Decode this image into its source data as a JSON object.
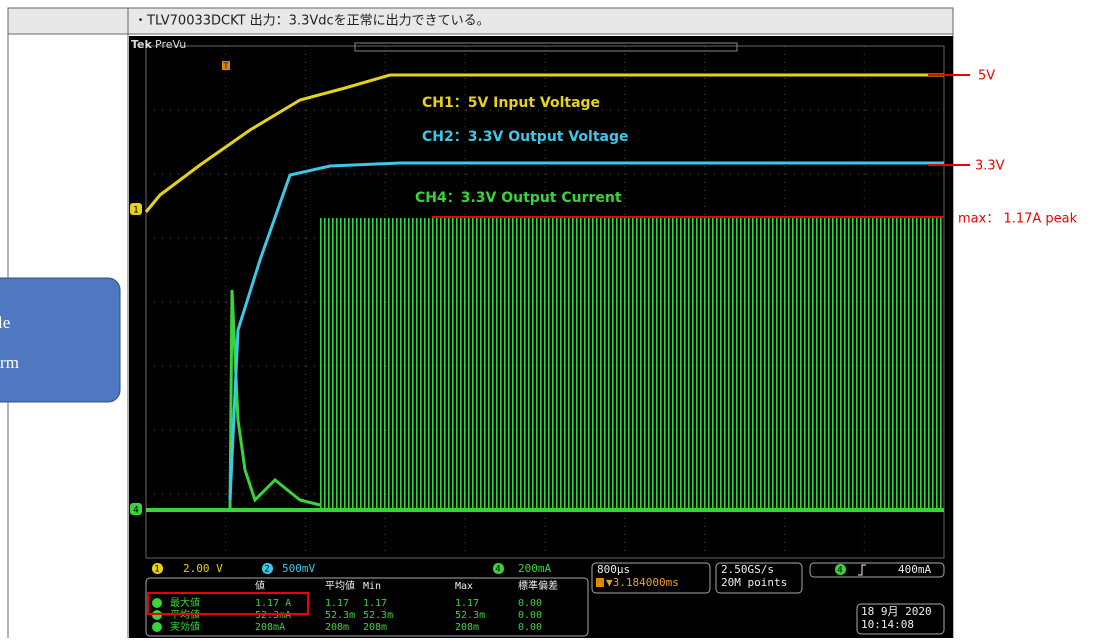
{
  "header": {
    "note": "・TLV70033DCKT 出力：3.3Vdcを正常に出力できている。"
  },
  "side_label": {
    "line1": "Whole",
    "line2": "waveform"
  },
  "scope": {
    "brand": "Tek",
    "mode": "PreVu",
    "trigger_marker": "T",
    "channel_markers": [
      "1",
      "2",
      "4"
    ],
    "channel_notes": [
      "CH1：5V Input Voltage",
      "CH2：3.3V Output Voltage",
      "CH4：3.3V Output Current"
    ],
    "annotations": [
      "5V",
      "3.3V",
      "max： 1.17A peak"
    ],
    "status": {
      "ch1_scale": "2.00 V",
      "ch2_scale": "500mV",
      "ch4_scale": "200mA",
      "timebase": "800µs",
      "trigger_pos": "▼3.184000ms",
      "sample_rate": "2.50GS/s",
      "record": "20M points",
      "trigger_level": "400mA",
      "date": "18 9月 2020",
      "time": "10:14:08"
    },
    "measurements": {
      "headers": [
        "値",
        "平均値",
        "Min",
        "Max",
        "標準偏差"
      ],
      "rows": [
        [
          "最大値",
          "1.17 A",
          "1.17",
          "1.17",
          "1.17",
          "0.00"
        ],
        [
          "平均値",
          "52.3mA",
          "52.3m",
          "52.3m",
          "52.3m",
          "0.00"
        ],
        [
          "実効値",
          "208mA",
          "208m",
          "208m",
          "208m",
          "0.00"
        ]
      ]
    }
  }
}
